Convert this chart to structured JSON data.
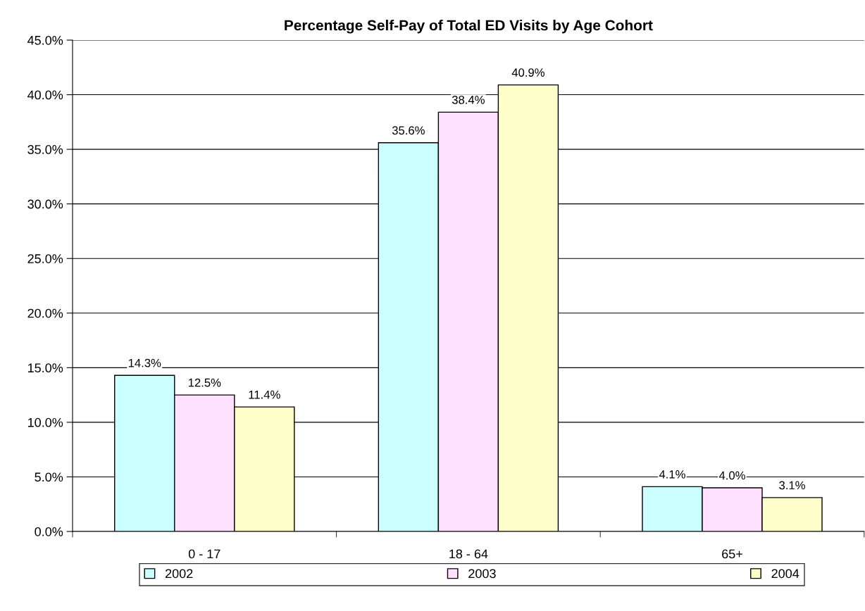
{
  "chart_data": {
    "type": "bar",
    "title": "Percentage Self-Pay of Total ED Visits by Age Cohort",
    "categories": [
      "0 - 17",
      "18 - 64",
      "65+"
    ],
    "series": [
      {
        "name": "2002",
        "color": "#ccffff",
        "values": [
          14.3,
          35.6,
          4.1
        ],
        "value_labels": [
          "14.3%",
          "35.6%",
          "4.1%"
        ]
      },
      {
        "name": "2003",
        "color": "#ffe0ff",
        "values": [
          12.5,
          38.4,
          4.0
        ],
        "value_labels": [
          "12.5%",
          "38.4%",
          "4.0%"
        ]
      },
      {
        "name": "2004",
        "color": "#ffffcc",
        "values": [
          11.4,
          40.9,
          3.1
        ],
        "value_labels": [
          "11.4%",
          "40.9%",
          "3.1%"
        ]
      }
    ],
    "ylim": [
      0,
      45
    ],
    "yticks": [
      {
        "value": 0,
        "label": "0.0%"
      },
      {
        "value": 5,
        "label": "5.0%"
      },
      {
        "value": 10,
        "label": "10.0%"
      },
      {
        "value": 15,
        "label": "15.0%"
      },
      {
        "value": 20,
        "label": "20.0%"
      },
      {
        "value": 25,
        "label": "25.0%"
      },
      {
        "value": 30,
        "label": "30.0%"
      },
      {
        "value": 35,
        "label": "35.0%"
      },
      {
        "value": 40,
        "label": "40.0%"
      },
      {
        "value": 45,
        "label": "45.0%"
      }
    ],
    "grid": "y",
    "legend": "bottom"
  }
}
